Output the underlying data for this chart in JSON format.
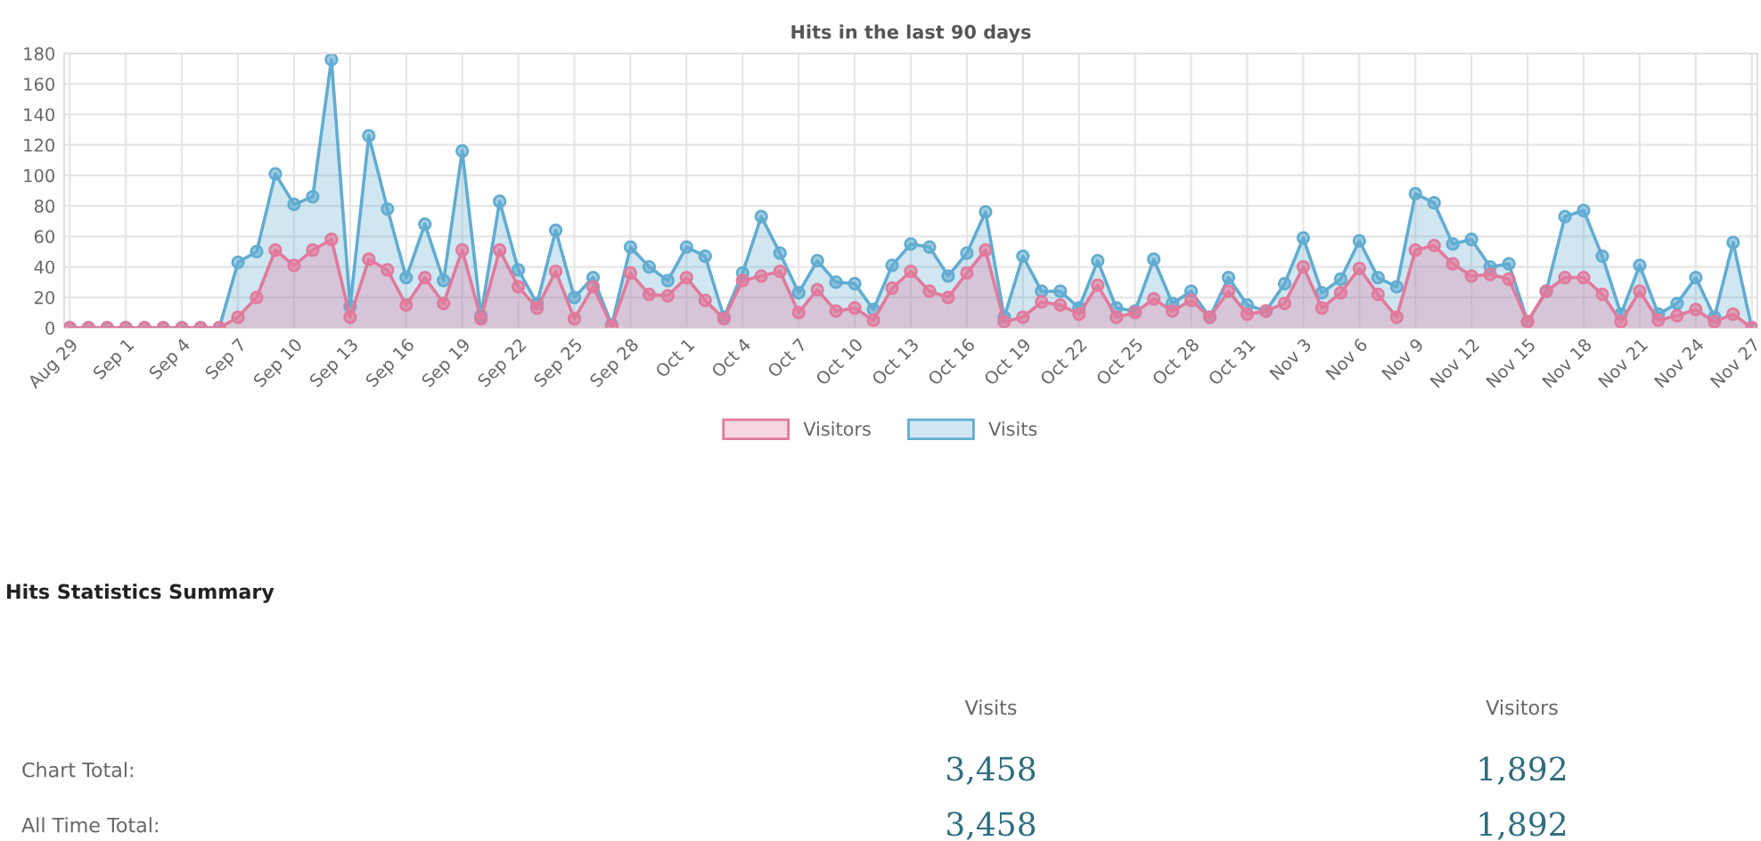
{
  "chart_data": {
    "type": "area",
    "title": "Hits in the last 90 days",
    "categories": [
      "Aug 29",
      null,
      null,
      "Sep 1",
      null,
      null,
      "Sep 4",
      null,
      null,
      "Sep 7",
      null,
      null,
      "Sep 10",
      null,
      null,
      "Sep 13",
      null,
      null,
      "Sep 16",
      null,
      null,
      "Sep 19",
      null,
      null,
      "Sep 22",
      null,
      null,
      "Sep 25",
      null,
      null,
      "Sep 28",
      null,
      null,
      "Oct 1",
      null,
      null,
      "Oct 4",
      null,
      null,
      "Oct 7",
      null,
      null,
      "Oct 10",
      null,
      null,
      "Oct 13",
      null,
      null,
      "Oct 16",
      null,
      null,
      "Oct 19",
      null,
      null,
      "Oct 22",
      null,
      null,
      "Oct 25",
      null,
      null,
      "Oct 28",
      null,
      null,
      "Oct 31",
      null,
      null,
      "Nov 3",
      null,
      null,
      "Nov 6",
      null,
      null,
      "Nov 9",
      null,
      null,
      "Nov 12",
      null,
      null,
      "Nov 15",
      null,
      null,
      "Nov 18",
      null,
      null,
      "Nov 21",
      null,
      null,
      "Nov 24",
      null,
      null,
      "Nov 27"
    ],
    "series": [
      {
        "name": "Visitors",
        "color": "#e07a9c",
        "values": [
          0,
          0,
          0,
          0,
          0,
          0,
          0,
          0,
          0,
          7,
          20,
          51,
          41,
          51,
          58,
          7,
          45,
          38,
          15,
          33,
          16,
          51,
          6,
          51,
          27,
          13,
          37,
          6,
          27,
          1,
          36,
          22,
          21,
          33,
          18,
          6,
          31,
          34,
          37,
          10,
          25,
          11,
          13,
          5,
          26,
          37,
          24,
          20,
          36,
          51,
          4,
          7,
          17,
          15,
          9,
          28,
          7,
          10,
          19,
          11,
          18,
          7,
          24,
          9,
          11,
          16,
          40,
          13,
          23,
          39,
          22,
          7,
          51,
          54,
          42,
          34,
          35,
          32,
          4,
          24,
          33,
          33,
          22,
          4,
          24,
          5,
          8,
          12,
          4,
          9,
          0
        ]
      },
      {
        "name": "Visits",
        "color": "#62acd0",
        "values": [
          0,
          0,
          0,
          0,
          0,
          0,
          0,
          0,
          0,
          43,
          50,
          101,
          81,
          86,
          176,
          14,
          126,
          78,
          33,
          68,
          31,
          116,
          8,
          83,
          38,
          16,
          64,
          20,
          33,
          2,
          53,
          40,
          31,
          53,
          47,
          7,
          36,
          73,
          49,
          23,
          44,
          30,
          29,
          12,
          41,
          55,
          53,
          34,
          49,
          76,
          7,
          47,
          24,
          24,
          13,
          44,
          13,
          11,
          45,
          16,
          24,
          7,
          33,
          15,
          11,
          29,
          59,
          23,
          32,
          57,
          33,
          27,
          88,
          82,
          55,
          58,
          40,
          42,
          4,
          24,
          73,
          77,
          47,
          9,
          41,
          9,
          16,
          33,
          7,
          56,
          0
        ]
      }
    ],
    "ylim": [
      0,
      180
    ],
    "yticks": [
      0,
      20,
      40,
      60,
      80,
      100,
      120,
      140,
      160,
      180
    ],
    "grid": true,
    "legend": "bottom",
    "marker": "circle",
    "line_style": "solid",
    "annotations": [
      "Hits Statistics Summary",
      "Visits",
      "Visitors",
      "Chart Total:",
      "3,458",
      "1,892",
      "All Time Total:",
      "3,458",
      "1,892"
    ]
  }
}
